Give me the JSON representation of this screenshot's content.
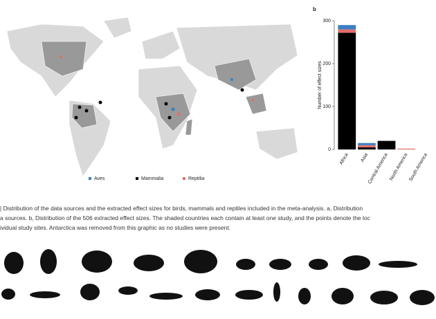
{
  "figure": {
    "panel_b_label": "b",
    "caption": [
      "| Distribution of the data sources and the extracted effect sizes for birds, mammals and reptiles included in the meta-analysis. a, Distribution",
      "a sources. b, Distribution of the 506 extracted effect sizes. The shaded countries each contain at least one study, and the points denote the loc",
      "ividual study sites. Antarctica was removed from this graphic as no studies were present."
    ]
  },
  "chart_data": {
    "type": "stacked_bar",
    "y_label": "Number of effect sizes",
    "categories": [
      "Africa",
      "Asia",
      "Central America",
      "North America",
      "South America"
    ],
    "series": [
      {
        "name": "Mammalia",
        "color": "#000000",
        "values": [
          272,
          5,
          20,
          0,
          null
        ]
      },
      {
        "name": "Reptilia",
        "color": "#e0706a",
        "values": [
          8,
          5,
          0,
          2,
          null
        ]
      },
      {
        "name": "Aves",
        "color": "#3a7fc4",
        "values": [
          10,
          5,
          0,
          0,
          null
        ]
      }
    ],
    "ylim": [
      0,
      300
    ],
    "yticks": [
      0,
      100,
      200,
      300
    ]
  }
}
